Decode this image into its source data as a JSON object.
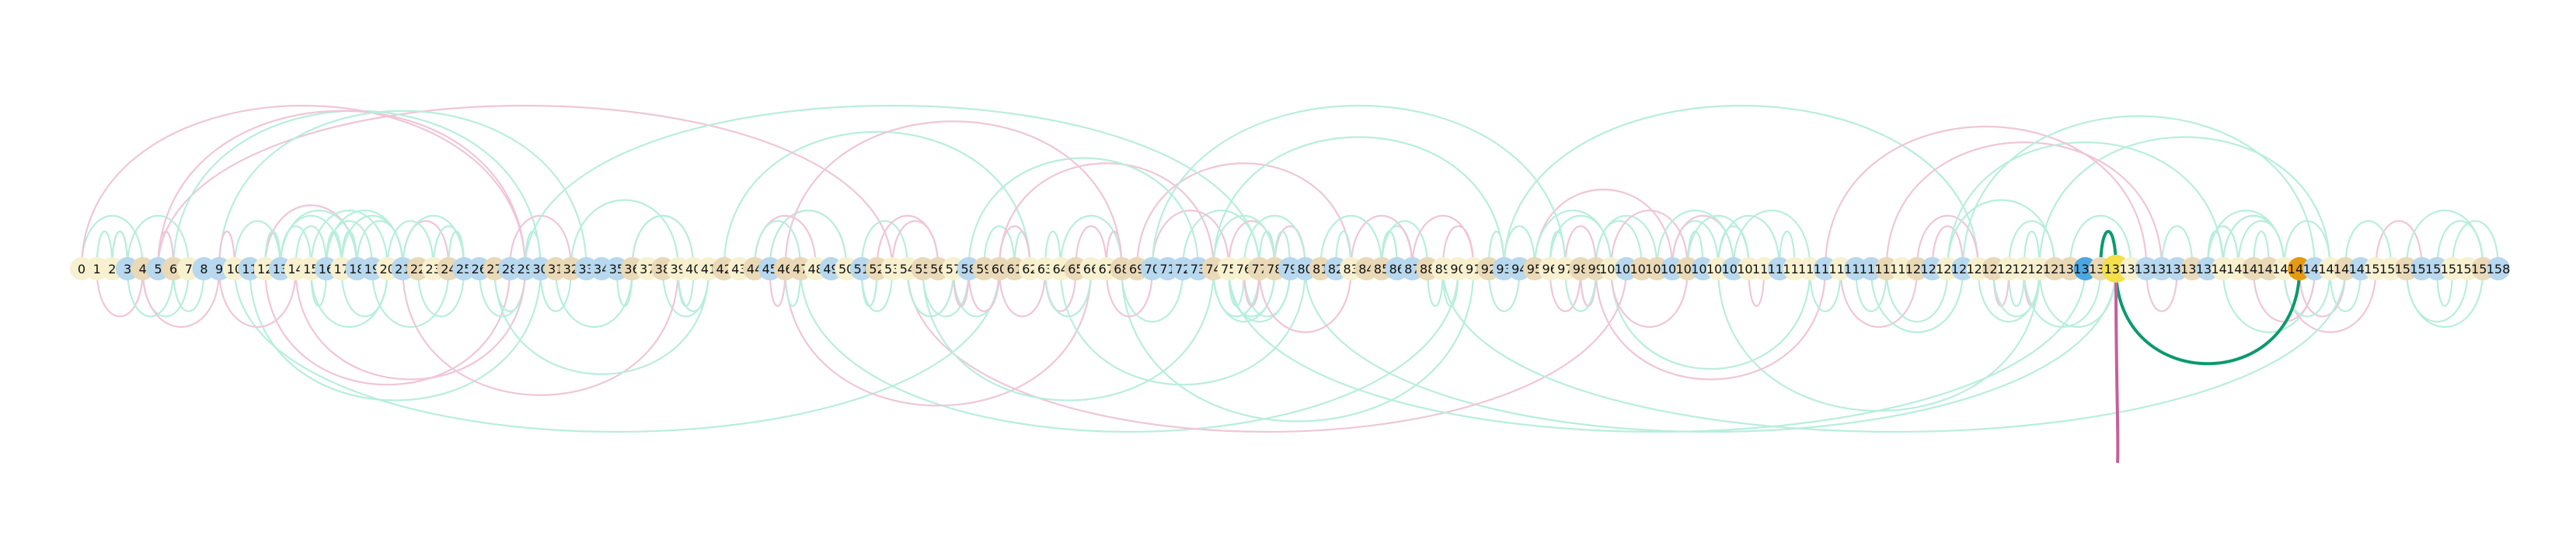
{
  "diagram": {
    "node_count": 159,
    "highlighted_node": "133",
    "colors": {
      "node_blue": "#b7d8ee",
      "node_cream": "#f7f1cf",
      "node_tan": "#ead9b6",
      "node_highlight_yellow": "#f4e04a",
      "node_highlight_blue": "#4ba7e0",
      "node_highlight_orange": "#e69a10",
      "edge_faint_green": "#b8eedd",
      "edge_faint_pink": "#efc6d8",
      "edge_strong_green": "#0b9a6e",
      "edge_strong_pink": "#c65f9a"
    }
  }
}
